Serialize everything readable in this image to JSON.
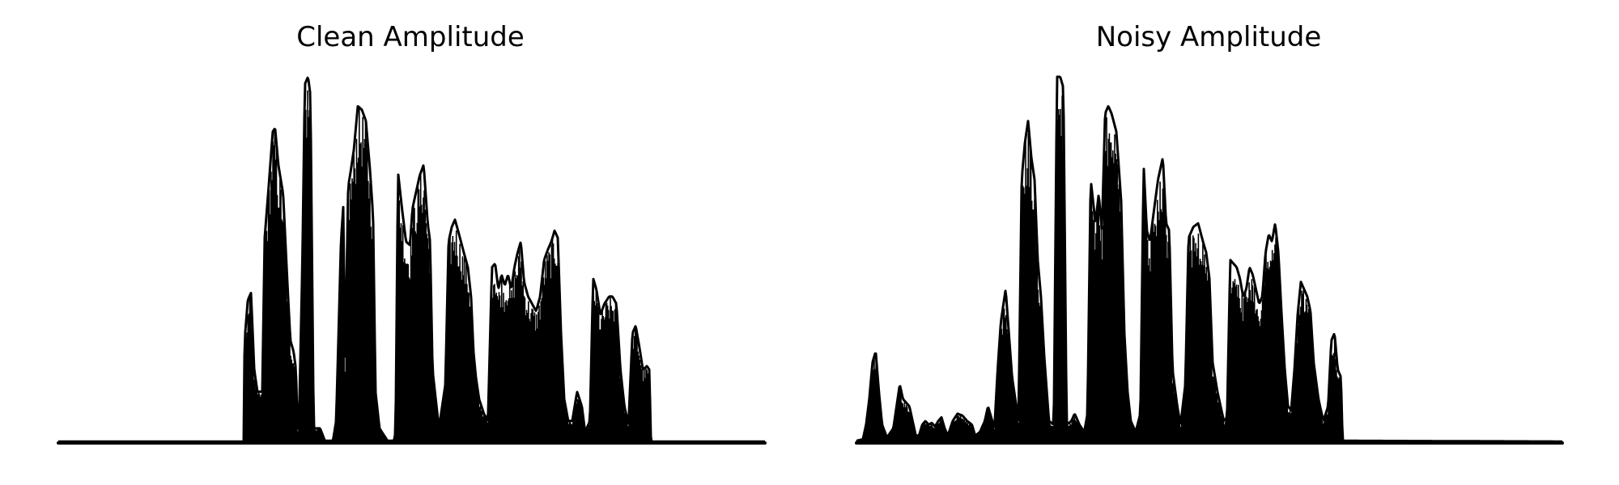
{
  "chart_data": [
    {
      "type": "area",
      "title": "Clean Amplitude",
      "xlabel": "",
      "ylabel": "",
      "axes_visible": false,
      "grid": false,
      "legend": "none",
      "series_color": "#000000",
      "x_range": [
        0,
        880
      ],
      "ylim": [
        0,
        1.0
      ],
      "envelope": [
        [
          0,
          0.004
        ],
        [
          230,
          0.004
        ],
        [
          231,
          0.005
        ],
        [
          232,
          0.28
        ],
        [
          236,
          0.39
        ],
        [
          240,
          0.41
        ],
        [
          244,
          0.2
        ],
        [
          248,
          0.14
        ],
        [
          254,
          0.14
        ],
        [
          257,
          0.56
        ],
        [
          262,
          0.7
        ],
        [
          267,
          0.85
        ],
        [
          270,
          0.86
        ],
        [
          274,
          0.76
        ],
        [
          280,
          0.68
        ],
        [
          285,
          0.45
        ],
        [
          289,
          0.28
        ],
        [
          293,
          0.25
        ],
        [
          296,
          0.2
        ],
        [
          298,
          0.03
        ],
        [
          300,
          0.08
        ],
        [
          304,
          0.5
        ],
        [
          307,
          0.98
        ],
        [
          311,
          1.0
        ],
        [
          314,
          0.95
        ],
        [
          318,
          0.04
        ],
        [
          326,
          0.04
        ],
        [
          332,
          0.006
        ],
        [
          342,
          0.006
        ],
        [
          346,
          0.06
        ],
        [
          349,
          0.3
        ],
        [
          352,
          0.55
        ],
        [
          355,
          0.65
        ],
        [
          357,
          0.2
        ],
        [
          361,
          0.7
        ],
        [
          364,
          0.74
        ],
        [
          368,
          0.8
        ],
        [
          373,
          0.92
        ],
        [
          378,
          0.91
        ],
        [
          383,
          0.88
        ],
        [
          388,
          0.75
        ],
        [
          392,
          0.62
        ],
        [
          395,
          0.14
        ],
        [
          400,
          0.04
        ],
        [
          410,
          0.006
        ],
        [
          418,
          0.006
        ],
        [
          420,
          0.03
        ],
        [
          423,
          0.74
        ],
        [
          428,
          0.64
        ],
        [
          433,
          0.55
        ],
        [
          438,
          0.54
        ],
        [
          441,
          0.64
        ],
        [
          445,
          0.68
        ],
        [
          450,
          0.73
        ],
        [
          455,
          0.76
        ],
        [
          460,
          0.6
        ],
        [
          463,
          0.55
        ],
        [
          466,
          0.2
        ],
        [
          470,
          0.12
        ],
        [
          474,
          0.04
        ],
        [
          478,
          0.1
        ],
        [
          482,
          0.16
        ],
        [
          486,
          0.55
        ],
        [
          490,
          0.59
        ],
        [
          494,
          0.61
        ],
        [
          499,
          0.57
        ],
        [
          505,
          0.52
        ],
        [
          510,
          0.48
        ],
        [
          514,
          0.4
        ],
        [
          517,
          0.25
        ],
        [
          520,
          0.18
        ],
        [
          524,
          0.12
        ],
        [
          530,
          0.08
        ],
        [
          535,
          0.06
        ],
        [
          540,
          0.48
        ],
        [
          544,
          0.49
        ],
        [
          548,
          0.42
        ],
        [
          552,
          0.46
        ],
        [
          556,
          0.43
        ],
        [
          560,
          0.46
        ],
        [
          564,
          0.42
        ],
        [
          568,
          0.48
        ],
        [
          572,
          0.52
        ],
        [
          576,
          0.55
        ],
        [
          580,
          0.44
        ],
        [
          585,
          0.4
        ],
        [
          590,
          0.38
        ],
        [
          595,
          0.36
        ],
        [
          600,
          0.4
        ],
        [
          605,
          0.5
        ],
        [
          610,
          0.53
        ],
        [
          614,
          0.55
        ],
        [
          618,
          0.58
        ],
        [
          622,
          0.56
        ],
        [
          626,
          0.3
        ],
        [
          630,
          0.12
        ],
        [
          635,
          0.06
        ],
        [
          640,
          0.06
        ],
        [
          646,
          0.14
        ],
        [
          652,
          0.1
        ],
        [
          656,
          0.03
        ],
        [
          662,
          0.06
        ],
        [
          666,
          0.45
        ],
        [
          670,
          0.42
        ],
        [
          675,
          0.35
        ],
        [
          680,
          0.38
        ],
        [
          686,
          0.4
        ],
        [
          690,
          0.4
        ],
        [
          695,
          0.38
        ],
        [
          700,
          0.2
        ],
        [
          705,
          0.1
        ],
        [
          710,
          0.05
        ],
        [
          715,
          0.3
        ],
        [
          719,
          0.32
        ],
        [
          723,
          0.27
        ],
        [
          728,
          0.2
        ],
        [
          733,
          0.21
        ],
        [
          736,
          0.2
        ],
        [
          738,
          0.004
        ],
        [
          880,
          0.004
        ]
      ]
    },
    {
      "type": "area",
      "title": "Noisy Amplitude",
      "xlabel": "",
      "ylabel": "",
      "axes_visible": false,
      "grid": false,
      "legend": "none",
      "series_color": "#000000",
      "x_range": [
        0,
        880
      ],
      "ylim": [
        0,
        1.0
      ],
      "envelope": [
        [
          0,
          0.006
        ],
        [
          8,
          0.01
        ],
        [
          12,
          0.05
        ],
        [
          16,
          0.12
        ],
        [
          20,
          0.22
        ],
        [
          24,
          0.25
        ],
        [
          28,
          0.14
        ],
        [
          32,
          0.05
        ],
        [
          38,
          0.015
        ],
        [
          46,
          0.04
        ],
        [
          50,
          0.1
        ],
        [
          54,
          0.16
        ],
        [
          58,
          0.12
        ],
        [
          62,
          0.11
        ],
        [
          66,
          0.1
        ],
        [
          70,
          0.06
        ],
        [
          74,
          0.02
        ],
        [
          78,
          0.02
        ],
        [
          82,
          0.05
        ],
        [
          86,
          0.06
        ],
        [
          90,
          0.05
        ],
        [
          94,
          0.055
        ],
        [
          98,
          0.045
        ],
        [
          102,
          0.06
        ],
        [
          106,
          0.07
        ],
        [
          110,
          0.04
        ],
        [
          114,
          0.02
        ],
        [
          120,
          0.06
        ],
        [
          126,
          0.08
        ],
        [
          132,
          0.075
        ],
        [
          138,
          0.06
        ],
        [
          144,
          0.05
        ],
        [
          148,
          0.02
        ],
        [
          154,
          0.03
        ],
        [
          160,
          0.06
        ],
        [
          164,
          0.1
        ],
        [
          168,
          0.07
        ],
        [
          172,
          0.04
        ],
        [
          176,
          0.2
        ],
        [
          180,
          0.33
        ],
        [
          186,
          0.42
        ],
        [
          190,
          0.3
        ],
        [
          194,
          0.18
        ],
        [
          198,
          0.12
        ],
        [
          202,
          0.06
        ],
        [
          206,
          0.72
        ],
        [
          210,
          0.82
        ],
        [
          214,
          0.88
        ],
        [
          218,
          0.78
        ],
        [
          222,
          0.72
        ],
        [
          226,
          0.5
        ],
        [
          230,
          0.4
        ],
        [
          234,
          0.24
        ],
        [
          240,
          0.06
        ],
        [
          246,
          0.05
        ],
        [
          250,
          1.0
        ],
        [
          254,
          1.0
        ],
        [
          258,
          0.97
        ],
        [
          262,
          0.05
        ],
        [
          268,
          0.06
        ],
        [
          272,
          0.08
        ],
        [
          278,
          0.05
        ],
        [
          284,
          0.03
        ],
        [
          288,
          0.08
        ],
        [
          292,
          0.72
        ],
        [
          298,
          0.6
        ],
        [
          302,
          0.68
        ],
        [
          306,
          0.58
        ],
        [
          310,
          0.9
        ],
        [
          314,
          0.92
        ],
        [
          318,
          0.9
        ],
        [
          324,
          0.85
        ],
        [
          330,
          0.66
        ],
        [
          334,
          0.3
        ],
        [
          338,
          0.14
        ],
        [
          342,
          0.06
        ],
        [
          348,
          0.03
        ],
        [
          354,
          0.08
        ],
        [
          358,
          0.76
        ],
        [
          362,
          0.58
        ],
        [
          366,
          0.55
        ],
        [
          370,
          0.62
        ],
        [
          376,
          0.72
        ],
        [
          382,
          0.78
        ],
        [
          386,
          0.6
        ],
        [
          390,
          0.58
        ],
        [
          394,
          0.2
        ],
        [
          400,
          0.1
        ],
        [
          404,
          0.05
        ],
        [
          410,
          0.16
        ],
        [
          414,
          0.56
        ],
        [
          420,
          0.59
        ],
        [
          426,
          0.6
        ],
        [
          432,
          0.55
        ],
        [
          436,
          0.52
        ],
        [
          440,
          0.45
        ],
        [
          444,
          0.22
        ],
        [
          450,
          0.14
        ],
        [
          454,
          0.1
        ],
        [
          458,
          0.06
        ],
        [
          462,
          0.07
        ],
        [
          466,
          0.5
        ],
        [
          470,
          0.49
        ],
        [
          474,
          0.48
        ],
        [
          478,
          0.45
        ],
        [
          482,
          0.4
        ],
        [
          486,
          0.42
        ],
        [
          490,
          0.48
        ],
        [
          494,
          0.46
        ],
        [
          498,
          0.42
        ],
        [
          502,
          0.38
        ],
        [
          506,
          0.4
        ],
        [
          510,
          0.52
        ],
        [
          514,
          0.57
        ],
        [
          518,
          0.55
        ],
        [
          522,
          0.6
        ],
        [
          526,
          0.52
        ],
        [
          530,
          0.35
        ],
        [
          534,
          0.2
        ],
        [
          538,
          0.1
        ],
        [
          542,
          0.09
        ],
        [
          546,
          0.2
        ],
        [
          550,
          0.35
        ],
        [
          554,
          0.44
        ],
        [
          558,
          0.42
        ],
        [
          562,
          0.4
        ],
        [
          566,
          0.36
        ],
        [
          570,
          0.22
        ],
        [
          576,
          0.12
        ],
        [
          582,
          0.06
        ],
        [
          588,
          0.1
        ],
        [
          592,
          0.28
        ],
        [
          596,
          0.3
        ],
        [
          600,
          0.2
        ],
        [
          604,
          0.18
        ],
        [
          606,
          0.006
        ],
        [
          880,
          0.004
        ]
      ]
    }
  ]
}
